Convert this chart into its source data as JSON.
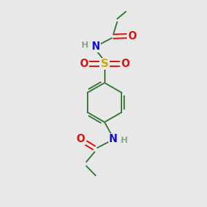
{
  "bg_color": "#e8e8e8",
  "atom_colors": {
    "C": "#3d7a3d",
    "H_gray": "#8aaa8a",
    "N": "#1010dd",
    "O": "#dd1010",
    "S": "#ccaa00"
  },
  "bond_color": "#3d7a3d",
  "fig_size": [
    3.0,
    3.0
  ],
  "dpi": 100
}
